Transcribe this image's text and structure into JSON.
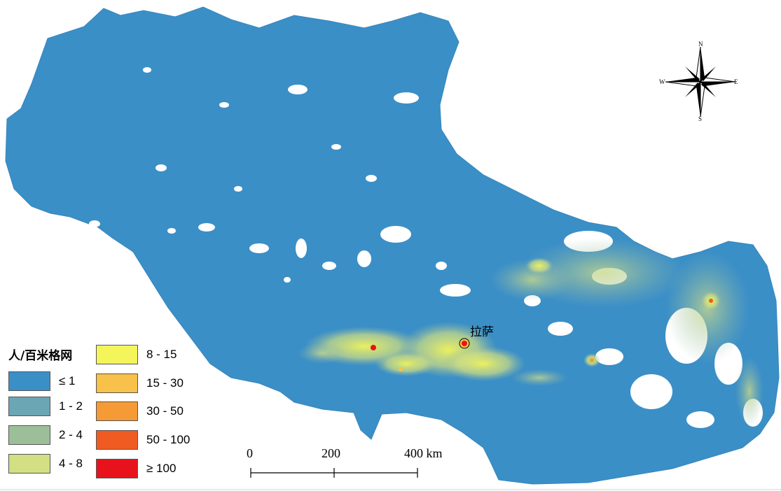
{
  "legend": {
    "title": "人/百米格网",
    "classes": [
      {
        "label": "≤ 1",
        "color": "#3b8fc7"
      },
      {
        "label": "1 - 2",
        "color": "#6ba6b5"
      },
      {
        "label": "2 - 4",
        "color": "#9cbf9a"
      },
      {
        "label": "4 - 8",
        "color": "#d2df82"
      },
      {
        "label": "8 - 15",
        "color": "#f4f55a"
      },
      {
        "label": "15 - 30",
        "color": "#f8c14a"
      },
      {
        "label": "30 - 50",
        "color": "#f59a34"
      },
      {
        "label": "50 - 100",
        "color": "#f05b22"
      },
      {
        "label": "≥ 100",
        "color": "#e8121c"
      }
    ]
  },
  "city": {
    "name": "拉萨"
  },
  "scale_bar": {
    "labels": [
      "0",
      "200",
      "400 km"
    ]
  },
  "compass": {
    "north": "N",
    "south": "S",
    "east": "E",
    "west": "W"
  }
}
